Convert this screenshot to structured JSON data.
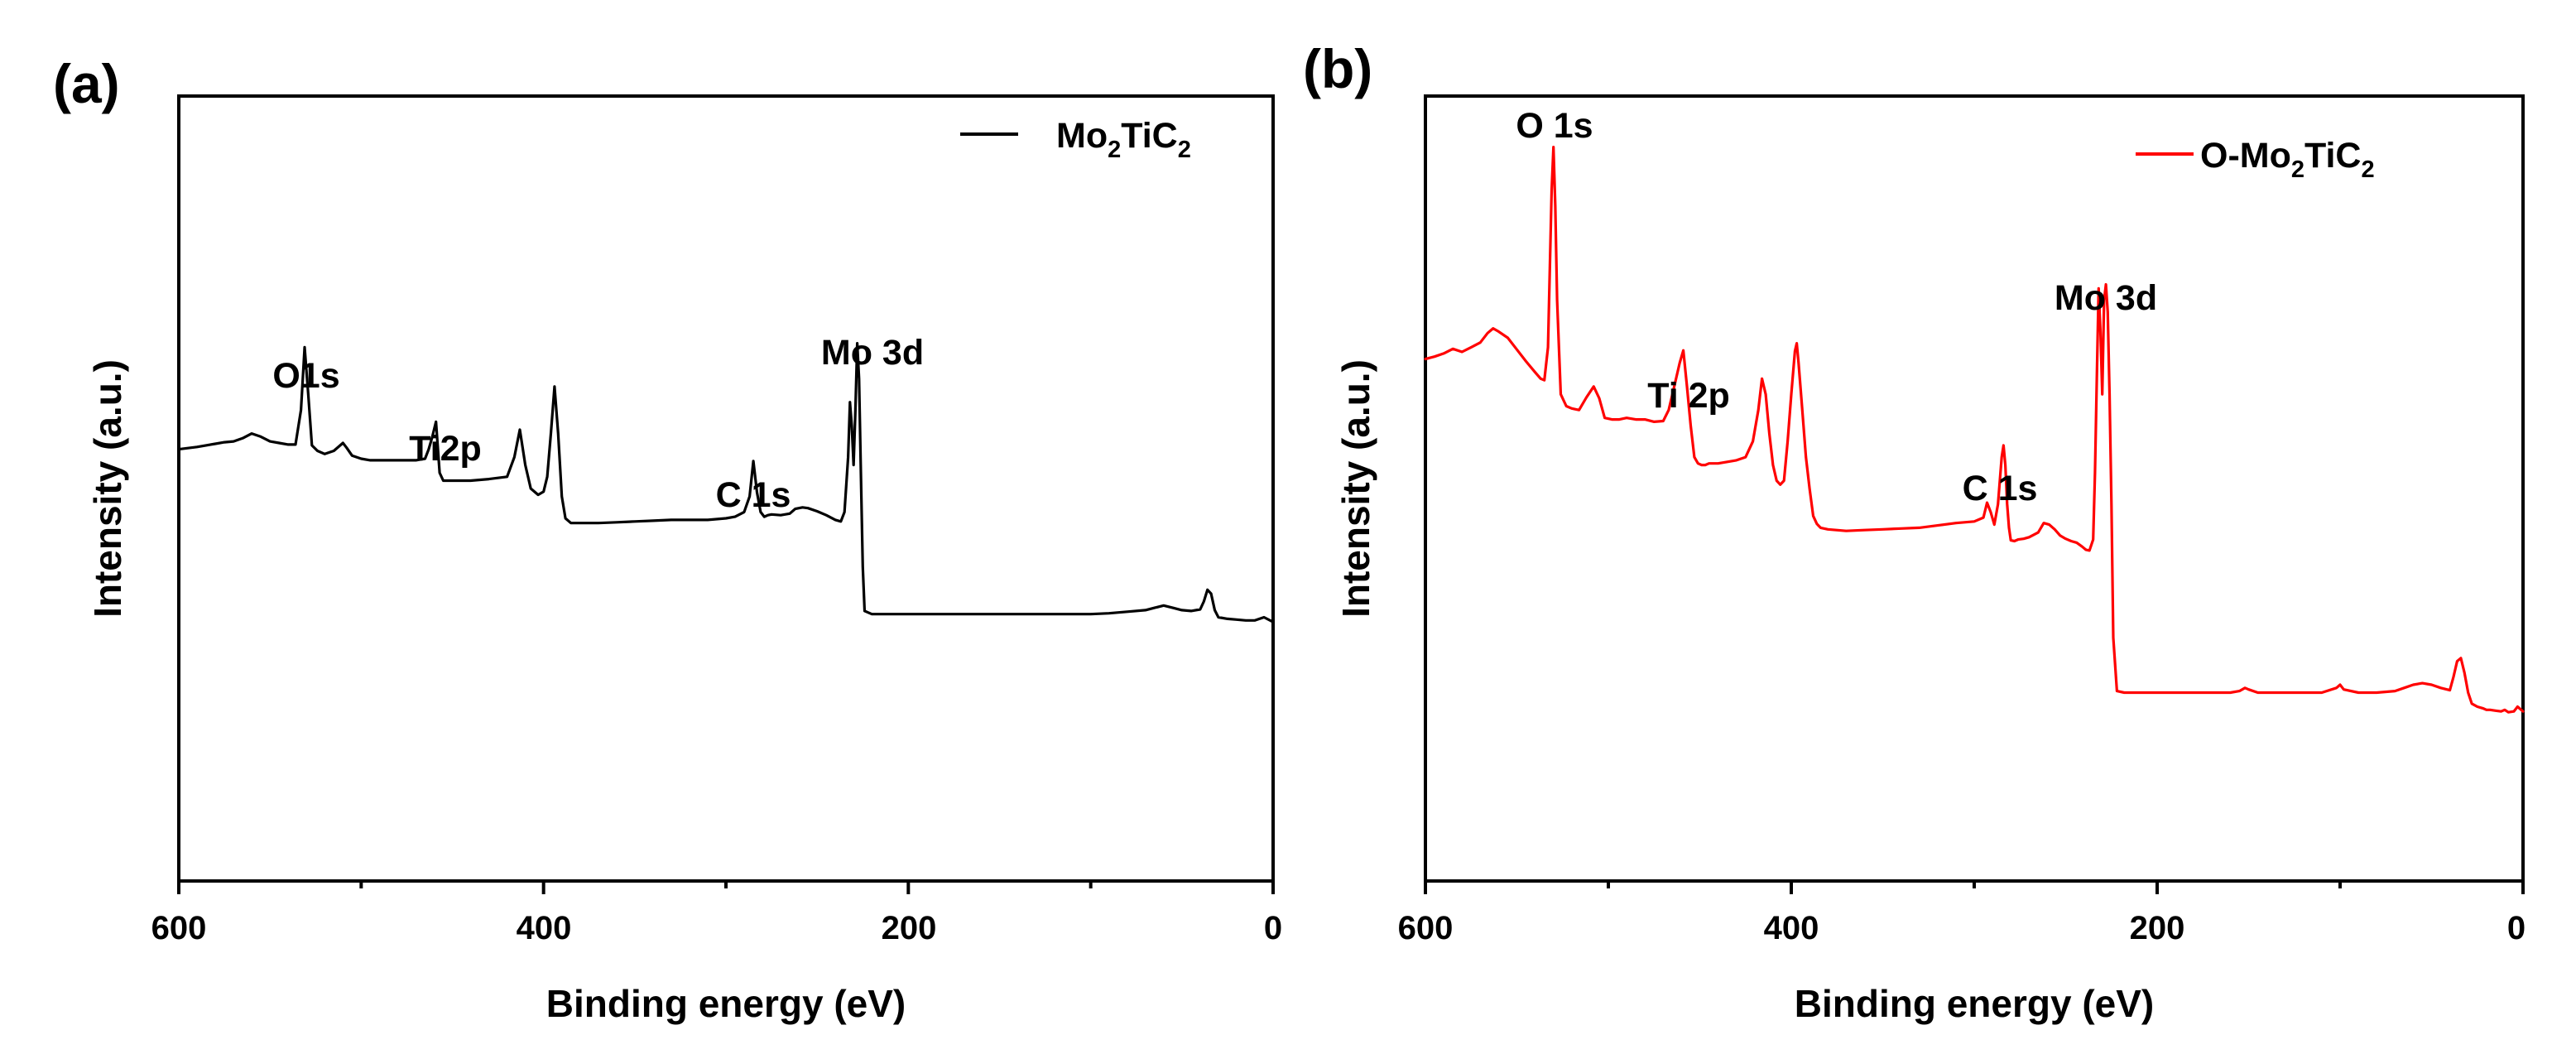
{
  "figure": {
    "panel_labels": [
      "(a)",
      "(b)"
    ]
  },
  "chart_data": [
    {
      "type": "line",
      "panel": "(a)",
      "title": "",
      "xlabel": "Binding energy (eV)",
      "ylabel": "Intensity (a.u.)",
      "xlim": [
        600,
        0
      ],
      "x_reversed": true,
      "ylim": [
        0,
        100
      ],
      "y_ticks_shown": false,
      "x_ticks": [
        600,
        400,
        200,
        0
      ],
      "x_tick_labels": [
        "600",
        "400",
        "200",
        "0"
      ],
      "grid": false,
      "legend": {
        "position": "top-right",
        "entries": [
          {
            "base": "Mo",
            "sub1": "2",
            "mid": "TiC",
            "sub2": "2",
            "label": "Mo2TiC2"
          }
        ]
      },
      "series": [
        {
          "name": "Mo2TiC2",
          "color": "#000000",
          "x": [
            600,
            590,
            580,
            575,
            570,
            565,
            560,
            555,
            550,
            545,
            540,
            536,
            533,
            531,
            529,
            527,
            524,
            520,
            515,
            510,
            508,
            505,
            500,
            495,
            490,
            480,
            470,
            465,
            463,
            461,
            459,
            457,
            455,
            452,
            447,
            440,
            430,
            420,
            416,
            413,
            410,
            407,
            403,
            400,
            398,
            396,
            394,
            392,
            390,
            388,
            385,
            380,
            370,
            360,
            350,
            340,
            330,
            320,
            310,
            300,
            295,
            290,
            287,
            285,
            283,
            281,
            279,
            277,
            275,
            270,
            265,
            262,
            258,
            255,
            250,
            245,
            240,
            237,
            235,
            233,
            232,
            231,
            230,
            229,
            228,
            227,
            226,
            225,
            224,
            222,
            220,
            210,
            200,
            180,
            160,
            140,
            120,
            100,
            90,
            80,
            70,
            65,
            60,
            55,
            50,
            45,
            40,
            38,
            36,
            34,
            32,
            30,
            25,
            20,
            15,
            10,
            5,
            0
          ],
          "y": [
            55.0,
            55.3,
            55.7,
            55.9,
            56.0,
            56.4,
            57.0,
            56.6,
            56.0,
            55.8,
            55.6,
            55.6,
            60.0,
            68.0,
            62.0,
            55.5,
            54.8,
            54.4,
            54.8,
            55.8,
            55.2,
            54.2,
            53.8,
            53.6,
            53.6,
            53.6,
            53.6,
            53.8,
            55.0,
            56.6,
            58.5,
            52.0,
            51.0,
            51.0,
            51.0,
            51.0,
            51.2,
            51.5,
            54.0,
            57.5,
            53.0,
            50.0,
            49.2,
            49.6,
            51.5,
            57.0,
            63.0,
            57.0,
            49.0,
            46.2,
            45.6,
            45.6,
            45.6,
            45.7,
            45.8,
            45.9,
            46.0,
            46.0,
            46.0,
            46.2,
            46.4,
            47.0,
            49.0,
            53.5,
            49.5,
            47.0,
            46.4,
            46.6,
            46.7,
            46.6,
            46.8,
            47.4,
            47.6,
            47.5,
            47.1,
            46.6,
            46.0,
            45.8,
            47.0,
            54.0,
            61.0,
            58.0,
            53.0,
            60.0,
            68.5,
            64.0,
            52.0,
            40.0,
            34.4,
            34.2,
            34.0,
            34.0,
            34.0,
            34.0,
            34.0,
            34.0,
            34.0,
            34.0,
            34.1,
            34.3,
            34.5,
            34.8,
            35.1,
            34.8,
            34.5,
            34.4,
            34.6,
            35.6,
            37.1,
            36.6,
            34.5,
            33.6,
            33.4,
            33.3,
            33.2,
            33.2,
            33.6,
            33.0
          ],
          "annotations": [
            {
              "text": "O1s",
              "x": 530
            },
            {
              "text": "Ti2p",
              "x": 458
            },
            {
              "text": "C 1s",
              "x": 284
            },
            {
              "text": "Mo 3d",
              "x": 228
            }
          ]
        }
      ]
    },
    {
      "type": "line",
      "panel": "(b)",
      "title": "",
      "xlabel": "Binding energy (eV)",
      "ylabel": "Intensity (a.u.)",
      "xlim": [
        600,
        0
      ],
      "x_reversed": true,
      "ylim": [
        0,
        100
      ],
      "y_ticks_shown": false,
      "x_ticks": [
        600,
        400,
        200,
        0
      ],
      "x_tick_labels": [
        "600",
        "400",
        "200",
        "0"
      ],
      "grid": false,
      "legend": {
        "position": "top-right",
        "entries": [
          {
            "base": "O-Mo",
            "sub1": "2",
            "mid": "TiC",
            "sub2": "2",
            "label": "O-Mo2TiC2"
          }
        ]
      },
      "series": [
        {
          "name": "O-Mo2TiC2",
          "color": "#ff0000",
          "x": [
            600,
            595,
            590,
            585,
            580,
            575,
            570,
            566,
            563,
            560,
            555,
            550,
            545,
            540,
            537,
            535,
            533,
            532,
            531,
            530,
            529,
            528,
            526,
            523,
            520,
            516,
            512,
            508,
            505,
            502,
            498,
            494,
            490,
            485,
            480,
            475,
            470,
            467,
            464,
            461,
            459,
            457,
            455,
            453,
            451,
            449,
            447,
            445,
            440,
            435,
            430,
            425,
            421,
            418,
            416,
            414,
            412,
            410,
            408,
            406,
            404,
            402,
            400,
            398,
            397,
            396,
            394,
            392,
            390,
            388,
            386,
            384,
            380,
            370,
            360,
            350,
            340,
            330,
            320,
            310,
            300,
            295,
            293,
            291,
            289,
            287,
            285,
            284,
            283,
            282,
            281,
            280,
            278,
            276,
            273,
            270,
            265,
            262,
            259,
            256,
            253,
            250,
            247,
            244,
            241,
            239,
            237,
            235,
            234,
            233,
            232,
            231,
            230,
            229,
            228,
            227,
            226,
            225,
            224,
            222,
            218,
            210,
            200,
            180,
            160,
            155,
            152,
            150,
            145,
            130,
            120,
            110,
            102,
            100,
            98,
            90,
            80,
            70,
            65,
            60,
            55,
            50,
            45,
            40,
            38,
            36,
            34,
            32,
            30,
            28,
            25,
            22,
            20,
            18,
            15,
            12,
            10,
            8,
            5,
            3,
            0
          ],
          "y": [
            66.5,
            66.8,
            67.2,
            67.8,
            67.4,
            68.0,
            68.6,
            69.8,
            70.4,
            70.0,
            69.2,
            67.7,
            66.2,
            64.8,
            64.0,
            63.8,
            68.0,
            78.0,
            88.0,
            93.5,
            86.0,
            74.0,
            62.0,
            60.5,
            60.2,
            60.0,
            61.6,
            63.0,
            61.5,
            59.0,
            58.8,
            58.8,
            59.0,
            58.8,
            58.8,
            58.5,
            58.6,
            60.0,
            63.0,
            66.0,
            67.6,
            63.0,
            58.0,
            54.0,
            53.2,
            53.0,
            53.0,
            53.2,
            53.2,
            53.4,
            53.6,
            54.0,
            56.0,
            60.0,
            64.0,
            62.0,
            57.0,
            53.0,
            51.0,
            50.5,
            51.0,
            56.0,
            62.0,
            67.5,
            68.5,
            66.0,
            60.0,
            54.0,
            50.0,
            46.5,
            45.5,
            45.0,
            44.8,
            44.6,
            44.7,
            44.8,
            44.9,
            45.0,
            45.3,
            45.6,
            45.8,
            46.3,
            48.2,
            47.0,
            45.4,
            48.0,
            54.0,
            55.5,
            53.0,
            48.0,
            45.0,
            43.4,
            43.3,
            43.5,
            43.6,
            43.8,
            44.4,
            45.6,
            45.4,
            44.8,
            44.0,
            43.6,
            43.3,
            43.1,
            42.6,
            42.2,
            42.1,
            43.5,
            52.0,
            64.0,
            75.5,
            70.0,
            62.0,
            74.0,
            76.0,
            72.5,
            62.0,
            48.0,
            31.0,
            24.2,
            24.0,
            24.0,
            24.0,
            24.0,
            24.0,
            24.2,
            24.6,
            24.4,
            24.0,
            24.0,
            24.0,
            24.0,
            24.6,
            25.0,
            24.4,
            24.0,
            24.0,
            24.2,
            24.6,
            25.0,
            25.2,
            25.0,
            24.6,
            24.3,
            26.0,
            28.0,
            28.4,
            26.5,
            24.0,
            22.6,
            22.2,
            22.0,
            21.8,
            21.8,
            21.7,
            21.6,
            21.8,
            21.5,
            21.6,
            22.2,
            21.6
          ],
          "annotations": [
            {
              "text": "O 1s",
              "x": 528
            },
            {
              "text": "Ti 2p",
              "x": 458
            },
            {
              "text": "C 1s",
              "x": 286
            },
            {
              "text": "Mo 3d",
              "x": 230
            }
          ]
        }
      ]
    }
  ]
}
